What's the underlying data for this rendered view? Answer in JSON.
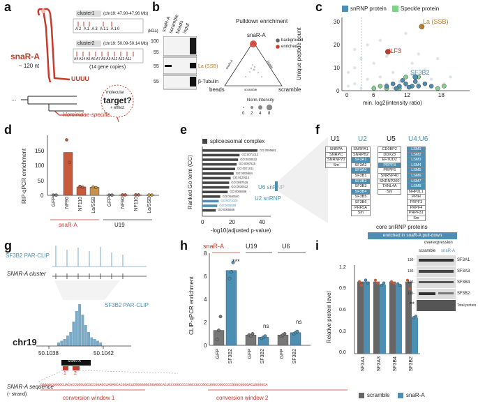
{
  "panels": {
    "a": "a",
    "b": "b",
    "c": "c",
    "d": "d",
    "e": "e",
    "f": "f",
    "g": "g",
    "h": "h",
    "i": "i"
  },
  "a": {
    "rna_name": "snaR-A",
    "length": "~ 120 nt",
    "tail": "UUUU",
    "cluster1_tag": "cluster1",
    "cluster1_coords": "(chr19: 47.90-47.96 Mb)",
    "cluster1_genes": [
      "A2",
      "A1",
      "A3",
      "A11",
      "A10"
    ],
    "cluster2_tag": "cluster2",
    "cluster2_coords": "(chr19: 50.09-50.14 Mb)",
    "cluster2_genes": [
      "A4",
      "A14",
      "A5",
      "A6",
      "A7",
      "A8",
      "A9",
      "A12",
      "A13",
      "A11"
    ],
    "gene_copies": "(14 gene copies)",
    "lineage": "Hominidae-specific",
    "ellipsis": "...",
    "target_small": "molecular",
    "target_big": "target?",
    "target_note": "+ effect"
  },
  "b": {
    "kda_label": "(kDa)",
    "lanes": [
      "snaR-A",
      "scramble",
      "beads",
      "input"
    ],
    "markers": [
      "100",
      "55",
      "55",
      "55"
    ],
    "band_labels": [
      "La (SSB)",
      "β-Tubulin"
    ],
    "pulldown_title": "Pulldown enrichment",
    "vertex_top": "snaR-A",
    "vertex_left": "beads",
    "vertex_right": "scramble",
    "legend_background": "background",
    "legend_enriched": "enriched",
    "norm_title": "Norm.Intensity",
    "norm_values": [
      "0",
      "2",
      "4",
      "8"
    ],
    "axis_tiny": [
      "snaR-A",
      "beads",
      "scramble"
    ]
  },
  "c": {
    "legend_snrnp": "snRNP protein",
    "legend_speckle": "Speckle protein",
    "ylabel": "Unique peptide count",
    "xlabel": "min. log2(intensity ratio)",
    "x_ticks": [
      "0",
      "6",
      "12",
      "18"
    ],
    "y_ticks": [
      "0",
      "10",
      "20",
      "30"
    ],
    "labels": [
      "La (SSB)",
      "ILF3",
      "SF3B2"
    ]
  },
  "d": {
    "ylabel": "RIP-qPCR enrichment",
    "y_ticks": [
      "0",
      "50",
      "100",
      "150"
    ],
    "x_labels": [
      "GFP",
      "NF90",
      "NF110",
      "La/SSB",
      "GFP",
      "NF90",
      "NF110",
      "La/SSB"
    ],
    "group1": "snaR-A",
    "group2": "U19"
  },
  "e": {
    "legend": "spliceosomal complex",
    "ylabel": "Ranked Go term (CC)",
    "xlabel": "-log10(adjusted p-value)",
    "x_ticks": [
      "0",
      "20",
      "40"
    ],
    "terms": [
      "GO:0005681",
      "GO:0071013",
      "GO:0030532",
      "GO:0097525",
      "GO:0071011",
      "GO:0005684",
      "GO:0120114",
      "GO:0097526",
      "GO:0030532",
      "GO:0005688",
      "GO:0046540",
      "GO:0071020",
      "GO:0005689",
      "GO:0005686"
    ],
    "u6_label": "U6 snRNP",
    "u2_label": "U2 snRNP"
  },
  "f": {
    "headers": [
      "U1",
      "U2",
      "U5",
      "U4:U6"
    ],
    "u1": [
      "SNRPA",
      "SNRPC",
      "SNRNP70",
      "Sm"
    ],
    "u2": [
      "SNRPA1",
      "SNRPB2",
      "SF3A1",
      "SF3A2",
      "SF3A3",
      "SF3B1",
      "SF3B2",
      "SF3B3",
      "SF3B4",
      "SF3B5",
      "SF3B6",
      "PHF5A",
      "Sm"
    ],
    "u5": [
      "CD0BP2",
      "DDX23",
      "EFTUD2",
      "PRPF8",
      "PRPF6",
      "SNRNP40",
      "SNRNP200",
      "TXNL4A",
      "Sm"
    ],
    "u46": [
      "LSM1",
      "LSM2",
      "LSM3",
      "LSM4",
      "LSM5",
      "LSM6",
      "LSM7",
      "LSM8",
      "NHP2L1",
      "PPIH",
      "PRPF3",
      "PRPF4",
      "PRPF31",
      "Sm"
    ],
    "core_label": "core snRNP proteins",
    "enriched_label": "enriched in snaR-A pull-down"
  },
  "g": {
    "track_label": "SF3B2 PAR-CLIP",
    "cluster_label": "SNAR-A cluster",
    "zoom_label": "SF3B2 PAR-CLIP",
    "chrom": "chr19",
    "coord_left": "50.1038",
    "coord_right": "50.1042",
    "gene_box": "SNAR-A",
    "window_nums": [
      "1",
      "2"
    ],
    "seq_label": "SNAR-A sequence",
    "strand": "(- strand)",
    "sequence": "GAAGGCUGGGCUACACCUGGUGCGCCGGAGCUAGAGCACGGACUCGGGGGGCGGAGGCACUCCCGGCCCCGGCCUCCGGCUGGCCGGCCCCGGGCGGGGACUGGGGCA",
    "win1": "conversion window 1",
    "win2": "conversion window 2"
  },
  "h": {
    "ylabel": "CLIP-qPCR enrichment",
    "y_ticks": [
      "0",
      "2",
      "4",
      "6",
      "8"
    ],
    "groups": [
      "snaR-A",
      "U19",
      "U6"
    ],
    "x_labels": [
      "GFP",
      "SF3B2",
      "GFP",
      "SF3B2",
      "GFP",
      "SF3B2"
    ],
    "sig": [
      "***",
      "ns",
      "ns"
    ]
  },
  "i": {
    "ylabel": "Relative protein level",
    "y_ticks": [
      "0.0",
      "0.3",
      "0.6",
      "0.9",
      "1.2"
    ],
    "x_labels": [
      "SF3A1",
      "SF3A3",
      "SF3B4",
      "SF3B2"
    ],
    "sig": "**",
    "legend_scramble": "scramble",
    "legend_snara": "snaR-A",
    "blot_title": "overexpression",
    "blot_lanes": [
      "scramble",
      "snaR-A"
    ],
    "blot_markers": [
      "130-",
      "130-",
      "100-",
      "130-"
    ],
    "blot_labels": [
      "SF3A1",
      "SF3A3",
      "SF3B4",
      "SF3B2",
      "Total protein"
    ]
  },
  "chart_data": [
    {
      "id": "d",
      "type": "bar",
      "categories": [
        "GFP",
        "NF90",
        "NF110",
        "La/SSB",
        "GFP",
        "NF90",
        "NF110",
        "La/SSB"
      ],
      "values": [
        1,
        143,
        28,
        27,
        1,
        1.5,
        1.5,
        1
      ],
      "points": [
        [
          1,
          1
        ],
        [
          185,
          110
        ],
        [
          30,
          27
        ],
        [
          28,
          26
        ],
        [
          1,
          1
        ],
        [
          1.5,
          1.5
        ],
        [
          1.5,
          1.5
        ],
        [
          1,
          1
        ]
      ],
      "ylabel": "RIP-qPCR enrichment",
      "ylim": [
        0,
        200
      ]
    },
    {
      "id": "h",
      "type": "bar",
      "categories": [
        "GFP",
        "SF3B2",
        "GFP",
        "SF3B2",
        "GFP",
        "SF3B2"
      ],
      "values": [
        1.3,
        6.5,
        0.9,
        0.7,
        0.9,
        1.1
      ],
      "points": [
        [
          0.5,
          1.3,
          2.5
        ],
        [
          5.8,
          6.4,
          7.2
        ],
        [
          0.9,
          0.8,
          1.0
        ],
        [
          0.6,
          0.7,
          0.8
        ],
        [
          0.8,
          0.9,
          1.0
        ],
        [
          1.0,
          1.1,
          1.2
        ]
      ],
      "ylabel": "CLIP-qPCR enrichment",
      "ylim": [
        0,
        8
      ]
    },
    {
      "id": "i",
      "type": "bar",
      "categories": [
        "SF3A1",
        "SF3A3",
        "SF3B4",
        "SF3B2"
      ],
      "series": [
        {
          "name": "scramble",
          "values": [
            1.0,
            1.0,
            1.0,
            1.0
          ]
        },
        {
          "name": "snaR-A",
          "values": [
            1.0,
            0.96,
            0.96,
            0.5
          ]
        }
      ],
      "points_scramble": [
        [
          1.0,
          0.95
        ],
        [
          1.02,
          0.98
        ],
        [
          1.0,
          0.98
        ],
        [
          1.02,
          0.9
        ]
      ],
      "points_snara": [
        [
          1.02,
          0.98
        ],
        [
          0.95,
          0.98
        ],
        [
          0.97,
          0.95
        ],
        [
          0.5,
          0.52
        ]
      ],
      "ylabel": "Relative protein level",
      "ylim": [
        0,
        1.2
      ]
    },
    {
      "id": "c",
      "type": "scatter",
      "xlabel": "min. log2(intensity ratio)",
      "ylabel": "Unique peptide count",
      "xlim": [
        -1,
        19
      ],
      "ylim": [
        0,
        32
      ],
      "background": [
        [
          0,
          2
        ],
        [
          1,
          3
        ],
        [
          2,
          1
        ],
        [
          3,
          5
        ],
        [
          4,
          2
        ],
        [
          5,
          6
        ],
        [
          6,
          3
        ],
        [
          7,
          8
        ],
        [
          8,
          4
        ],
        [
          9,
          2
        ],
        [
          10,
          7
        ],
        [
          11,
          3
        ],
        [
          1,
          10
        ],
        [
          4,
          12
        ],
        [
          6,
          15
        ],
        [
          8,
          18
        ],
        [
          10,
          12
        ],
        [
          13,
          5
        ],
        [
          15,
          3
        ],
        [
          3,
          20
        ],
        [
          0,
          8
        ],
        [
          2,
          14
        ],
        [
          5,
          22
        ],
        [
          9,
          25
        ],
        [
          12,
          9
        ],
        [
          14,
          14
        ],
        [
          16,
          6
        ],
        [
          7,
          1
        ],
        [
          11,
          16
        ],
        [
          1,
          18
        ]
      ],
      "snrnp": [
        [
          6,
          2
        ],
        [
          7,
          3
        ],
        [
          8,
          2
        ],
        [
          9,
          3
        ],
        [
          10,
          2
        ],
        [
          10.5,
          4
        ],
        [
          11,
          2
        ],
        [
          12,
          3
        ],
        [
          8.5,
          4.5
        ],
        [
          7.5,
          1
        ],
        [
          9.5,
          1.5
        ],
        [
          13,
          2
        ]
      ],
      "speckle": [
        [
          4,
          1
        ],
        [
          5,
          2
        ],
        [
          6,
          1
        ],
        [
          8,
          1
        ],
        [
          9,
          6
        ],
        [
          11,
          6
        ],
        [
          14,
          1
        ],
        [
          15,
          2
        ]
      ],
      "highlight": [
        {
          "label": "La (SSB)",
          "x": 11.5,
          "y": 28
        },
        {
          "label": "ILF3",
          "x": 6.2,
          "y": 17
        },
        {
          "label": "SF3B2",
          "x": 10.5,
          "y": 6
        }
      ]
    },
    {
      "id": "e",
      "type": "bar",
      "categories": [
        "GO:0005681",
        "GO:0071013",
        "GO:0030532",
        "GO:0097525",
        "GO:0071011",
        "GO:0005684",
        "GO:0120114",
        "GO:0097526",
        "GO:0030532",
        "GO:0005688",
        "GO:0046540",
        "GO:0071020",
        "GO:0005689",
        "GO:0005686"
      ],
      "values": [
        37,
        25,
        24,
        23,
        22,
        21,
        19,
        18,
        18,
        17,
        12,
        11,
        10,
        9
      ],
      "xlabel": "-log10(adjusted p-value)",
      "xlim": [
        0,
        45
      ]
    },
    {
      "id": "g",
      "type": "bar",
      "values": [
        2,
        3,
        4,
        6,
        8,
        14,
        20,
        24,
        18,
        12,
        8,
        5,
        4,
        3,
        2
      ],
      "xlabel": "chr19",
      "xlim": [
        50.1038,
        50.1042
      ]
    }
  ]
}
